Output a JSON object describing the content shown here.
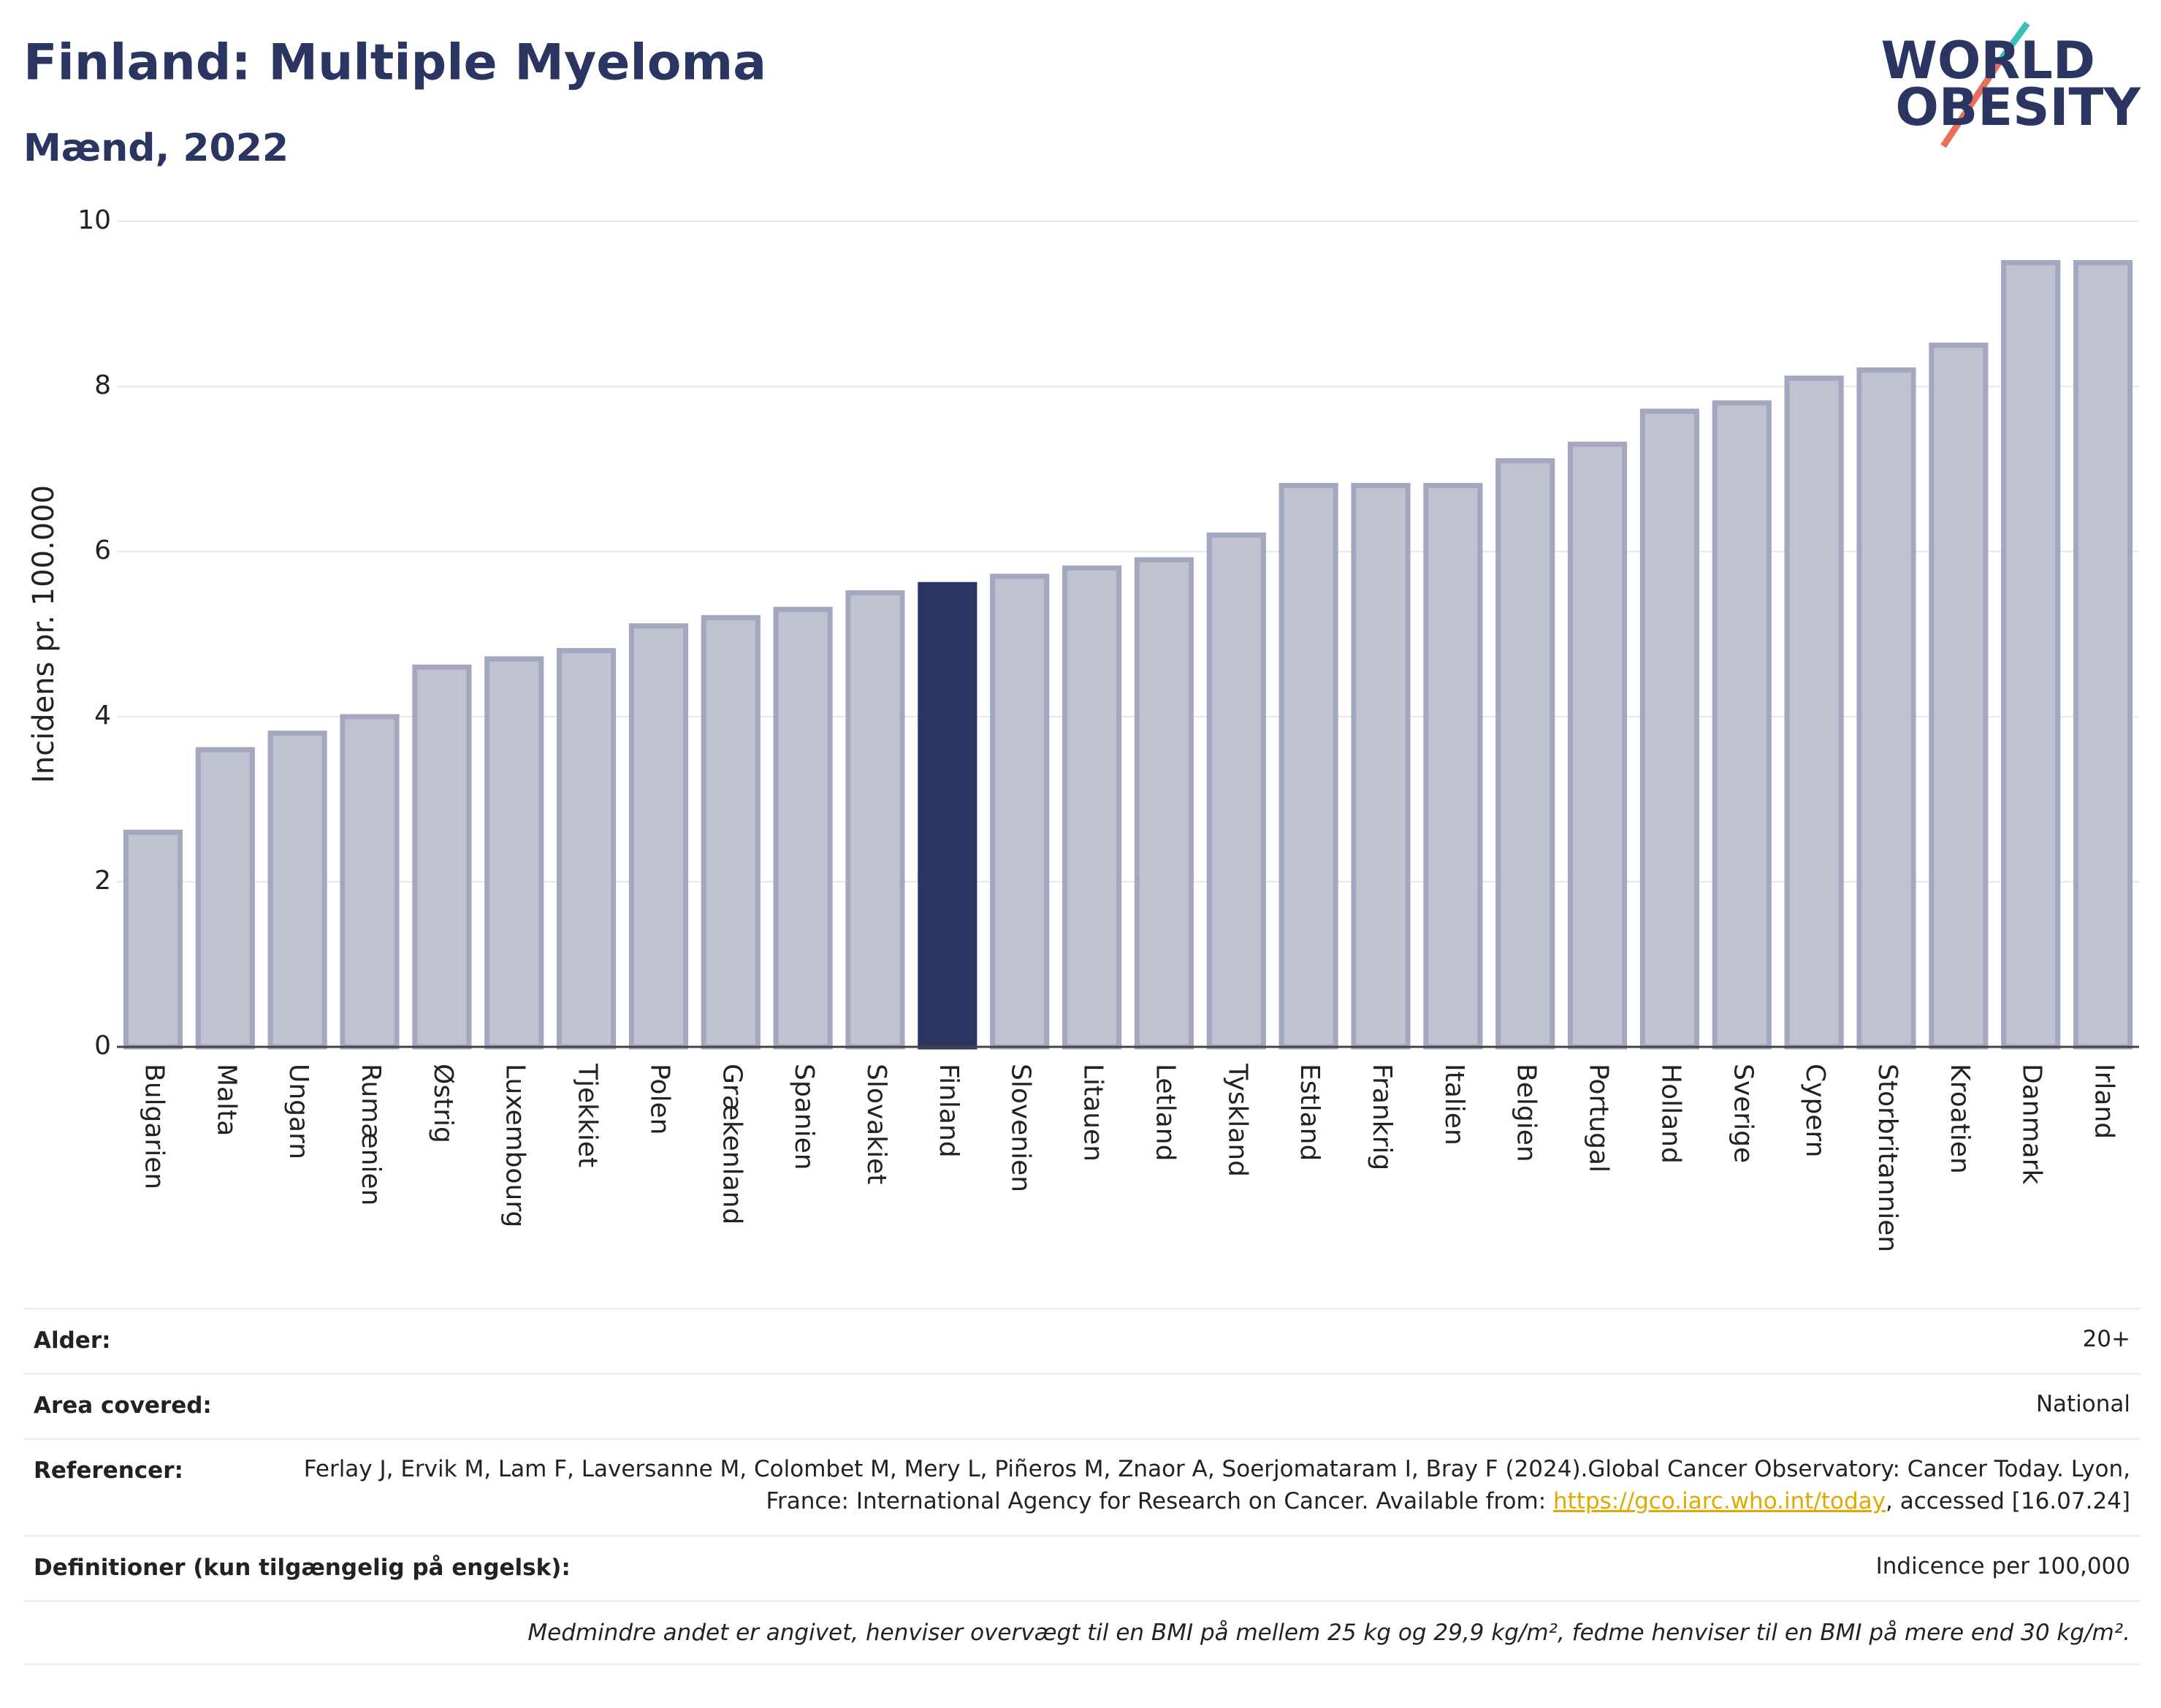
{
  "chart_data": {
    "type": "bar",
    "title": "Finland: Multiple Myeloma",
    "subtitle": "Mænd, 2022",
    "logo": [
      "WORLD",
      "OBESITY"
    ],
    "ylabel": "Incidens pr. 100.000",
    "categories": [
      "Bulgarien",
      "Malta",
      "Ungarn",
      "Rumænien",
      "Østrig",
      "Luxembourg",
      "Tjekkiet",
      "Polen",
      "Grækenland",
      "Spanien",
      "Slovakiet",
      "Finland",
      "Slovenien",
      "Litauen",
      "Letland",
      "Tyskland",
      "Estland",
      "Frankrig",
      "Italien",
      "Belgien",
      "Portugal",
      "Holland",
      "Sverige",
      "Cypern",
      "Storbritannien",
      "Kroatien",
      "Danmark",
      "Irland"
    ],
    "values": [
      2.6,
      3.6,
      3.8,
      4.0,
      4.6,
      4.7,
      4.8,
      5.1,
      5.2,
      5.3,
      5.5,
      5.6,
      5.7,
      5.8,
      5.9,
      6.2,
      6.8,
      6.8,
      6.8,
      7.1,
      7.3,
      7.7,
      7.8,
      8.1,
      8.2,
      8.5,
      9.5,
      9.5
    ],
    "color": "#bfc2cf",
    "edge_color": "#a3a7bf",
    "highlight": "Finland",
    "highlight_color": "#2a3561",
    "ylim": [
      0,
      10
    ],
    "yticks": [
      0,
      2,
      4,
      6,
      8,
      10
    ],
    "grid": true
  },
  "info": {
    "rows": [
      {
        "label": "Alder:",
        "value": "20+"
      },
      {
        "label": "Area covered:",
        "value": "National"
      },
      {
        "label": "Referencer:",
        "value": "Ferlay J, Ervik M, Lam F, Laversanne M, Colombet M, Mery L, Piñeros M, Znaor A, Soerjomataram I, Bray F (2024).Global Cancer Observatory: Cancer Today. Lyon, France: International Agency for Research on Cancer. Available from: ",
        "link": "https://gco.iarc.who.int/today",
        "after": ", accessed [16.07.24]"
      },
      {
        "label": "Definitioner (kun tilgængelig på engelsk):",
        "value": "Indicence per 100,000"
      }
    ],
    "note": "Medmindre andet er angivet, henviser overvægt til en BMI på mellem 25 kg og 29,9 kg/m², fedme henviser til en BMI på mere end 30 kg/m²."
  }
}
